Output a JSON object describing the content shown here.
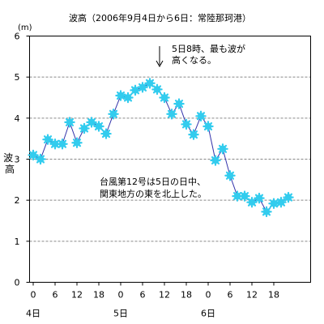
{
  "chart_data": {
    "type": "line",
    "title": "波高（2006年9月4日から6日：常陸那珂港）",
    "unit": "(m)",
    "ylabel": "波高",
    "ylim": [
      0,
      6
    ],
    "yticks": [
      "0",
      "1",
      "2",
      "3",
      "4",
      "5",
      "6"
    ],
    "grid": true,
    "x_tick_labels": [
      "0",
      "6",
      "12",
      "18",
      "0",
      "6",
      "12",
      "18",
      "0",
      "6",
      "12",
      "18"
    ],
    "day_labels": [
      "4日",
      "5日",
      "6日"
    ],
    "x_hours": [
      0,
      2,
      4,
      6,
      8,
      10,
      12,
      14,
      16,
      18,
      20,
      22,
      24,
      26,
      28,
      30,
      32,
      34,
      36,
      38,
      40,
      42,
      44,
      46,
      48,
      50,
      52,
      54,
      56,
      58,
      60,
      62,
      64,
      66,
      68,
      70
    ],
    "series": [
      {
        "values": [
          3.1,
          3.0,
          3.48,
          3.37,
          3.37,
          3.9,
          3.4,
          3.75,
          3.9,
          3.8,
          3.62,
          4.1,
          4.55,
          4.5,
          4.68,
          4.75,
          4.85,
          4.7,
          4.5,
          4.1,
          4.35,
          3.85,
          3.6,
          4.05,
          3.8,
          2.97,
          3.25,
          2.6,
          2.1,
          2.1,
          1.95,
          2.05,
          1.72,
          1.92,
          1.95,
          2.07
        ],
        "color": "#3333aa",
        "marker_color": "#33ccee"
      }
    ],
    "annotations": [
      {
        "lines": [
          "5日8時、最も波が",
          "高くなる。"
        ]
      },
      {
        "lines": [
          "台風第12号は5日の日中、",
          "関東地方の東を北上した。"
        ]
      }
    ]
  }
}
